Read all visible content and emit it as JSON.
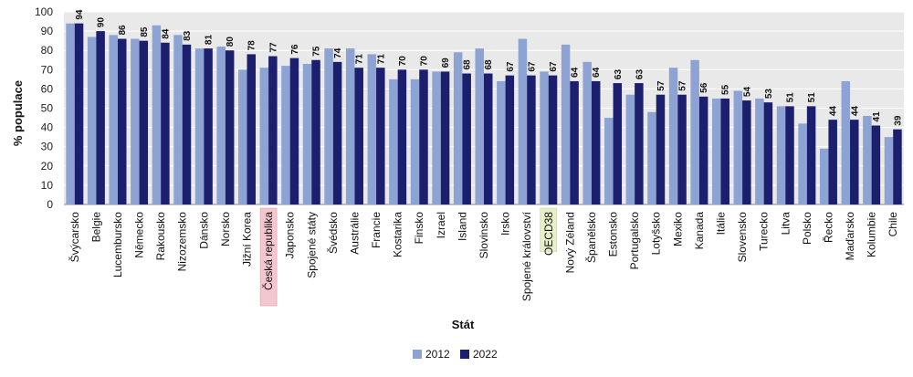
{
  "chart_data": {
    "type": "bar",
    "xlabel": "Stát",
    "ylabel": "% populace",
    "ylim": [
      0,
      100
    ],
    "yticks": [
      0,
      10,
      20,
      30,
      40,
      50,
      60,
      70,
      80,
      90,
      100
    ],
    "grid": true,
    "legend": "bottom",
    "highlight": {
      "Česká republika": "#f4c6cf",
      "OECD38": "#e6efc8"
    },
    "categories": [
      "Švýcarsko",
      "Belgie",
      "Lucembursko",
      "Německo",
      "Rakousko",
      "Nizozemsko",
      "Dánsko",
      "Norsko",
      "Jižní Korea",
      "Česká republika",
      "Japonsko",
      "Spojené státy",
      "Švédsko",
      "Austrálie",
      "Francie",
      "Kostarika",
      "Finsko",
      "Izrael",
      "Island",
      "Slovinsko",
      "Irsko",
      "Spojené království",
      "OECD38",
      "Nový Zéland",
      "Španělsko",
      "Estonsko",
      "Portugalsko",
      "Lotyšsko",
      "Mexiko",
      "Kanada",
      "Itálie",
      "Slovensko",
      "Turecko",
      "Litva",
      "Polsko",
      "Řecko",
      "Maďarsko",
      "Kolumbie",
      "Chile"
    ],
    "series": [
      {
        "name": "2012",
        "color": "#8da3d4",
        "values": [
          94,
          87,
          88,
          86,
          93,
          88,
          81,
          82,
          70,
          71,
          72,
          73,
          81,
          81,
          78,
          65,
          65,
          69,
          79,
          81,
          64,
          86,
          69,
          83,
          74,
          45,
          57,
          48,
          71,
          75,
          55,
          59,
          55,
          51,
          42,
          29,
          64,
          46,
          35
        ]
      },
      {
        "name": "2022",
        "color": "#1b1f6e",
        "values": [
          94,
          90,
          86,
          85,
          84,
          83,
          81,
          80,
          78,
          77,
          76,
          75,
          74,
          71,
          71,
          70,
          70,
          69,
          68,
          68,
          67,
          67,
          67,
          64,
          64,
          63,
          63,
          57,
          57,
          56,
          55,
          54,
          53,
          51,
          51,
          44,
          44,
          41,
          39
        ]
      }
    ]
  }
}
